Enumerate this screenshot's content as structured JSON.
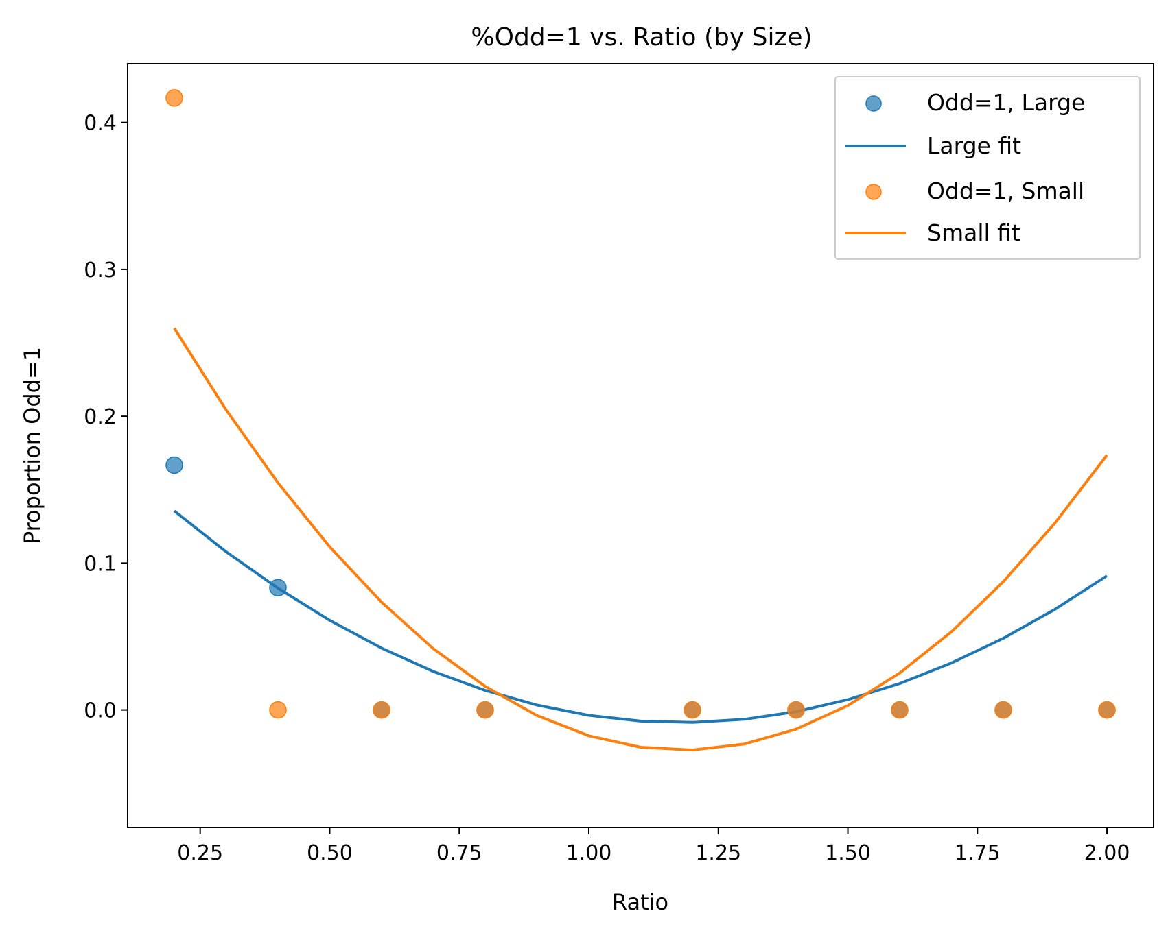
{
  "chart_data": {
    "type": "scatter",
    "title": "%Odd=1 vs. Ratio (by Size)",
    "xlabel": "Ratio",
    "ylabel": "Proportion Odd=1",
    "xlim": [
      0.11,
      2.09
    ],
    "ylim": [
      -0.08,
      0.44
    ],
    "xticks": [
      0.25,
      0.5,
      0.75,
      1.0,
      1.25,
      1.5,
      1.75,
      2.0
    ],
    "xtick_labels": [
      "0.25",
      "0.50",
      "0.75",
      "1.00",
      "1.25",
      "1.50",
      "1.75",
      "2.00"
    ],
    "yticks": [
      0.0,
      0.1,
      0.2,
      0.3,
      0.4
    ],
    "ytick_labels": [
      "0.0",
      "0.1",
      "0.2",
      "0.3",
      "0.4"
    ],
    "grid": false,
    "legend_position": "top-right",
    "series": [
      {
        "name": "Odd=1, Large",
        "kind": "scatter",
        "color": "#1f77b4",
        "x": [
          0.2,
          0.4,
          0.6,
          0.8,
          1.2,
          1.4,
          1.6,
          1.8,
          2.0
        ],
        "y": [
          0.1667,
          0.0833,
          0.0,
          0.0,
          0.0,
          0.0,
          0.0,
          0.0,
          0.0
        ]
      },
      {
        "name": "Large fit",
        "kind": "line",
        "color": "#1f77b4",
        "x": [
          0.2,
          0.3,
          0.4,
          0.5,
          0.6,
          0.7,
          0.8,
          0.9,
          1.0,
          1.1,
          1.2,
          1.3,
          1.4,
          1.5,
          1.6,
          1.7,
          1.8,
          1.9,
          2.0
        ],
        "y": [
          0.1355,
          0.1077,
          0.0829,
          0.061,
          0.0421,
          0.0262,
          0.0133,
          0.0033,
          -0.0037,
          -0.0076,
          -0.0085,
          -0.0064,
          -0.0012,
          0.007,
          0.018,
          0.032,
          0.0488,
          0.0686,
          0.0913
        ]
      },
      {
        "name": "Odd=1, Small",
        "kind": "scatter",
        "color": "#ff7f0e",
        "x": [
          0.2,
          0.4,
          0.6,
          0.8,
          1.2,
          1.4,
          1.6,
          1.8,
          2.0
        ],
        "y": [
          0.4167,
          0.0,
          0.0,
          0.0,
          0.0,
          0.0,
          0.0,
          0.0,
          0.0
        ]
      },
      {
        "name": "Small fit",
        "kind": "line",
        "color": "#ff7f0e",
        "x": [
          0.2,
          0.3,
          0.4,
          0.5,
          0.6,
          0.7,
          0.8,
          0.9,
          1.0,
          1.1,
          1.2,
          1.3,
          1.4,
          1.5,
          1.6,
          1.7,
          1.8,
          1.9,
          2.0
        ],
        "y": [
          0.2599,
          0.2043,
          0.1547,
          0.111,
          0.0734,
          0.0417,
          0.016,
          -0.0038,
          -0.0176,
          -0.0254,
          -0.0273,
          -0.0232,
          -0.0131,
          0.003,
          0.0251,
          0.0532,
          0.0873,
          0.1274,
          0.1735
        ]
      }
    ]
  }
}
